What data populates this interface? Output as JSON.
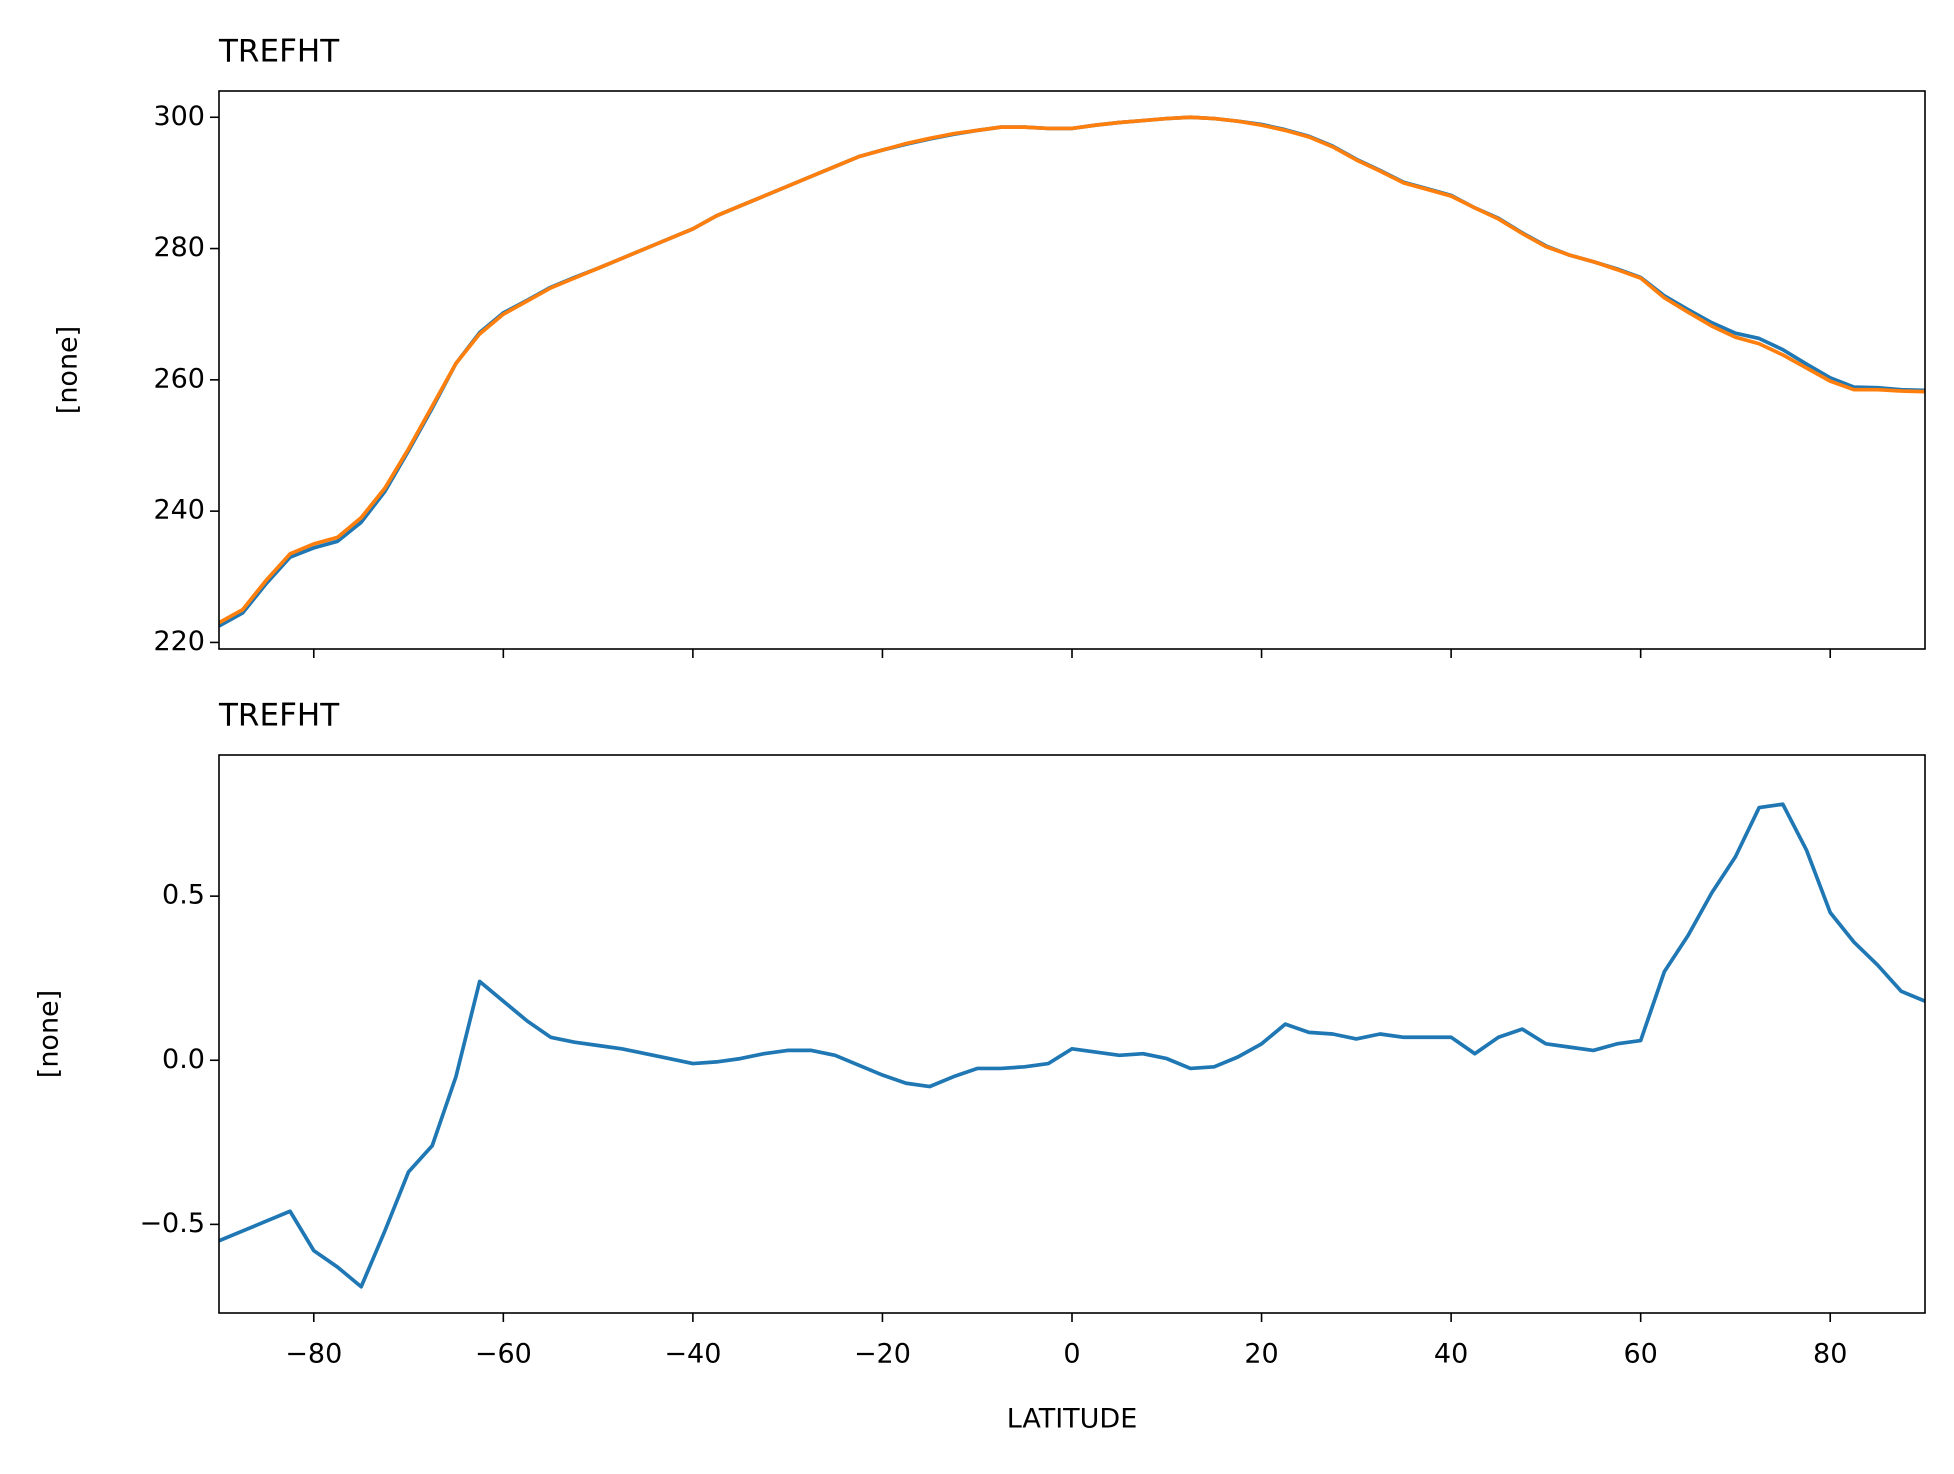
{
  "chart_data": [
    {
      "type": "line",
      "title": "TREFHT",
      "ylabel": "[none]",
      "x": [
        -90,
        -87.5,
        -85,
        -82.5,
        -80,
        -77.5,
        -75,
        -72.5,
        -70,
        -67.5,
        -65,
        -62.5,
        -60,
        -57.5,
        -55,
        -52.5,
        -50,
        -47.5,
        -45,
        -42.5,
        -40,
        -37.5,
        -35,
        -32.5,
        -30,
        -27.5,
        -25,
        -22.5,
        -20,
        -17.5,
        -15,
        -12.5,
        -10,
        -7.5,
        -5,
        -2.5,
        0,
        2.5,
        5,
        7.5,
        10,
        12.5,
        15,
        17.5,
        20,
        22.5,
        25,
        27.5,
        30,
        32.5,
        35,
        37.5,
        40,
        42.5,
        45,
        47.5,
        50,
        52.5,
        55,
        57.5,
        60,
        62.5,
        65,
        67.5,
        70,
        72.5,
        75,
        77.5,
        80,
        82.5,
        85,
        87.5,
        90
      ],
      "series": [
        {
          "color": "#1f77b4",
          "values": [
            222.5,
            224.5,
            229.0,
            233.0,
            234.4,
            235.4,
            238.3,
            243.0,
            249.2,
            255.7,
            262.5,
            267.2,
            270.2,
            272.1,
            274.1,
            275.6,
            277.0,
            278.5,
            280.0,
            281.5,
            283.0,
            285.0,
            286.5,
            288.0,
            289.5,
            291.0,
            292.5,
            294.0,
            295.0,
            295.9,
            296.7,
            297.4,
            298.0,
            298.5,
            298.5,
            298.3,
            298.3,
            298.8,
            299.2,
            299.5,
            299.8,
            300.0,
            299.8,
            299.4,
            298.9,
            298.1,
            297.1,
            295.6,
            293.6,
            291.9,
            290.1,
            289.1,
            288.1,
            286.2,
            284.6,
            282.4,
            280.4,
            279.0,
            278.0,
            276.9,
            275.6,
            272.8,
            270.7,
            268.7,
            267.1,
            266.3,
            264.6,
            262.4,
            260.3,
            258.9,
            258.8,
            258.5,
            258.4
          ]
        },
        {
          "color": "#ff7f0e",
          "values": [
            223,
            225,
            229.5,
            233.5,
            235,
            236,
            239,
            243.5,
            249.5,
            256,
            262.5,
            267,
            270,
            272,
            274,
            275.5,
            277,
            278.5,
            280,
            281.5,
            283,
            285,
            286.5,
            288,
            289.5,
            291,
            292.5,
            294,
            295,
            296,
            296.8,
            297.5,
            298,
            298.5,
            298.5,
            298.3,
            298.3,
            298.8,
            299.2,
            299.5,
            299.8,
            300,
            299.8,
            299.4,
            298.8,
            298,
            297,
            295.5,
            293.5,
            291.8,
            290,
            289,
            288,
            286.2,
            284.5,
            282.3,
            280.3,
            279,
            278,
            276.8,
            275.5,
            272.5,
            270.3,
            268.2,
            266.5,
            265.5,
            263.8,
            261.8,
            259.8,
            258.5,
            258.5,
            258.3,
            258.2
          ]
        }
      ],
      "xlim": [
        -90,
        90
      ],
      "xticks": [
        -80,
        -60,
        -40,
        -20,
        0,
        20,
        40,
        60,
        80
      ],
      "ylim": [
        219,
        304
      ],
      "yticks": [
        220,
        240,
        260,
        280,
        300
      ]
    },
    {
      "type": "line",
      "title": "TREFHT",
      "ylabel": "[none]",
      "xlabel": "LATITUDE",
      "x": [
        -90,
        -87.5,
        -85,
        -82.5,
        -80,
        -77.5,
        -75,
        -72.5,
        -70,
        -67.5,
        -65,
        -62.5,
        -60,
        -57.5,
        -55,
        -52.5,
        -50,
        -47.5,
        -45,
        -42.5,
        -40,
        -37.5,
        -35,
        -32.5,
        -30,
        -27.5,
        -25,
        -22.5,
        -20,
        -17.5,
        -15,
        -12.5,
        -10,
        -7.5,
        -5,
        -2.5,
        0,
        2.5,
        5,
        7.5,
        10,
        12.5,
        15,
        17.5,
        20,
        22.5,
        25,
        27.5,
        30,
        32.5,
        35,
        37.5,
        40,
        42.5,
        45,
        47.5,
        50,
        52.5,
        55,
        57.5,
        60,
        62.5,
        65,
        67.5,
        70,
        72.5,
        75,
        77.5,
        80,
        82.5,
        85,
        87.5,
        90
      ],
      "series": [
        {
          "color": "#1f77b4",
          "values": [
            -0.55,
            -0.52,
            -0.49,
            -0.46,
            -0.58,
            -0.63,
            -0.69,
            -0.52,
            -0.34,
            -0.26,
            -0.05,
            0.24,
            0.18,
            0.12,
            0.07,
            0.055,
            0.045,
            0.035,
            0.02,
            0.005,
            -0.01,
            -0.005,
            0.005,
            0.02,
            0.03,
            0.03,
            0.015,
            -0.015,
            -0.045,
            -0.07,
            -0.08,
            -0.05,
            -0.025,
            -0.025,
            -0.02,
            -0.01,
            0.035,
            0.025,
            0.015,
            0.02,
            0.005,
            -0.025,
            -0.02,
            0.01,
            0.05,
            0.11,
            0.085,
            0.08,
            0.065,
            0.08,
            0.07,
            0.07,
            0.07,
            0.02,
            0.07,
            0.095,
            0.05,
            0.04,
            0.03,
            0.05,
            0.06,
            0.27,
            0.38,
            0.51,
            0.62,
            0.77,
            0.78,
            0.64,
            0.45,
            0.36,
            0.29,
            0.21,
            0.18
          ]
        }
      ],
      "xlim": [
        -90,
        90
      ],
      "xticks": [
        {
          "value": -80,
          "label": "−80"
        },
        {
          "value": -60,
          "label": "−60"
        },
        {
          "value": -40,
          "label": "−40"
        },
        {
          "value": -20,
          "label": "−20"
        },
        0,
        20,
        40,
        60,
        80
      ],
      "ylim": [
        -0.77,
        0.93
      ],
      "yticks": [
        {
          "value": -0.5,
          "label": "−0.5"
        },
        {
          "value": 0,
          "label": "0.0"
        },
        0.5
      ]
    }
  ]
}
